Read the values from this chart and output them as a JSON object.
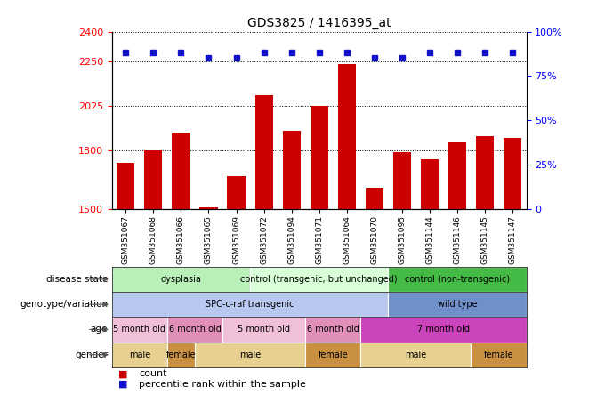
{
  "title": "GDS3825 / 1416395_at",
  "samples": [
    "GSM351067",
    "GSM351068",
    "GSM351066",
    "GSM351065",
    "GSM351069",
    "GSM351072",
    "GSM351094",
    "GSM351071",
    "GSM351064",
    "GSM351070",
    "GSM351095",
    "GSM351144",
    "GSM351146",
    "GSM351145",
    "GSM351147"
  ],
  "counts": [
    1735,
    1800,
    1890,
    1510,
    1670,
    2080,
    1900,
    2025,
    2235,
    1610,
    1790,
    1755,
    1840,
    1870,
    1860
  ],
  "percentile": [
    88,
    88,
    88,
    85,
    85,
    88,
    88,
    88,
    88,
    85,
    85,
    88,
    88,
    88,
    88
  ],
  "ylim_left": [
    1500,
    2400
  ],
  "ylim_right": [
    0,
    100
  ],
  "yticks_left": [
    1500,
    1800,
    2025,
    2250,
    2400
  ],
  "yticks_right": [
    0,
    25,
    50,
    75,
    100
  ],
  "bar_color": "#cc0000",
  "dot_color": "#1111cc",
  "background_color": "#ffffff",
  "disease_state_groups": [
    {
      "label": "dysplasia",
      "start": 0,
      "end": 5,
      "color": "#b8f0b8"
    },
    {
      "label": "control (transgenic, but unchanged)",
      "start": 5,
      "end": 10,
      "color": "#d8ffd8"
    },
    {
      "label": "control (non-transgenic)",
      "start": 10,
      "end": 15,
      "color": "#44bb44"
    }
  ],
  "genotype_groups": [
    {
      "label": "SPC-c-raf transgenic",
      "start": 0,
      "end": 10,
      "color": "#b8c8f0"
    },
    {
      "label": "wild type",
      "start": 10,
      "end": 15,
      "color": "#7090cc"
    }
  ],
  "age_groups": [
    {
      "label": "5 month old",
      "start": 0,
      "end": 2,
      "color": "#f0c0d8"
    },
    {
      "label": "6 month old",
      "start": 2,
      "end": 4,
      "color": "#e090b8"
    },
    {
      "label": "5 month old",
      "start": 4,
      "end": 7,
      "color": "#f0c0d8"
    },
    {
      "label": "6 month old",
      "start": 7,
      "end": 9,
      "color": "#e090b8"
    },
    {
      "label": "7 month old",
      "start": 9,
      "end": 15,
      "color": "#cc44bb"
    }
  ],
  "gender_groups": [
    {
      "label": "male",
      "start": 0,
      "end": 2,
      "color": "#e8d090"
    },
    {
      "label": "female",
      "start": 2,
      "end": 3,
      "color": "#c89040"
    },
    {
      "label": "male",
      "start": 3,
      "end": 7,
      "color": "#e8d090"
    },
    {
      "label": "female",
      "start": 7,
      "end": 9,
      "color": "#c89040"
    },
    {
      "label": "male",
      "start": 9,
      "end": 13,
      "color": "#e8d090"
    },
    {
      "label": "female",
      "start": 13,
      "end": 15,
      "color": "#c89040"
    }
  ],
  "row_labels": [
    "disease state",
    "genotype/variation",
    "age",
    "gender"
  ],
  "xtick_bg": "#d0d0d0"
}
